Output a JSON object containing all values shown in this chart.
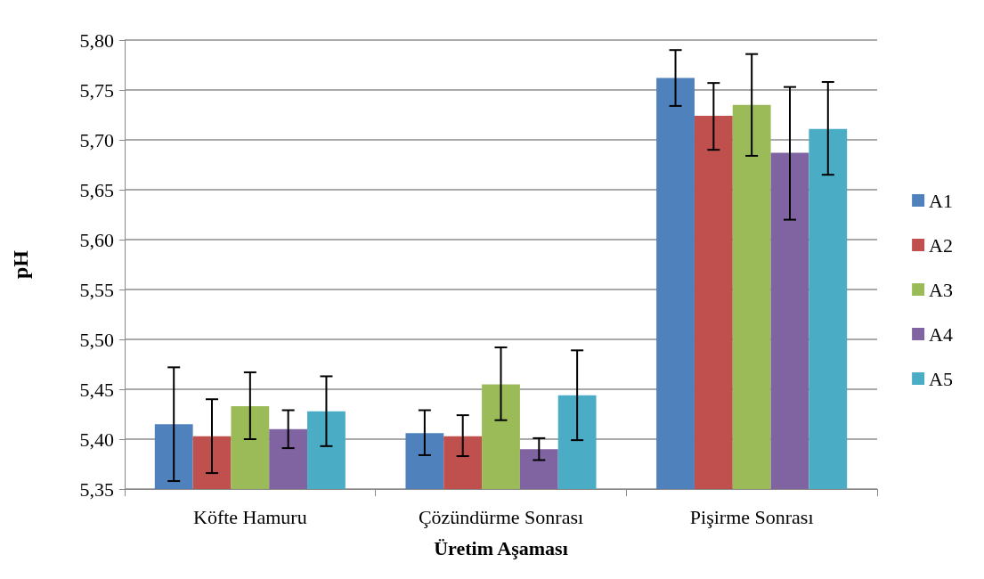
{
  "chart_data": {
    "type": "bar",
    "xlabel": "Üretim Aşaması",
    "ylabel": "pH",
    "categories": [
      "Köfte Hamuru",
      "Çözündürme Sonrası",
      "Pişirme Sonrası"
    ],
    "series": [
      {
        "name": "A1",
        "color": "#4f81bd",
        "values": [
          5.415,
          5.406,
          5.762
        ],
        "errors": [
          [
            5.358,
            5.472
          ],
          [
            5.384,
            5.429
          ],
          [
            5.734,
            5.79
          ]
        ]
      },
      {
        "name": "A2",
        "color": "#c0504d",
        "values": [
          5.403,
          5.403,
          5.724
        ],
        "errors": [
          [
            5.366,
            5.44
          ],
          [
            5.383,
            5.424
          ],
          [
            5.69,
            5.757
          ]
        ]
      },
      {
        "name": "A3",
        "color": "#9bbb59",
        "values": [
          5.433,
          5.455,
          5.735
        ],
        "errors": [
          [
            5.4,
            5.467
          ],
          [
            5.419,
            5.492
          ],
          [
            5.684,
            5.786
          ]
        ]
      },
      {
        "name": "A4",
        "color": "#8064a2",
        "values": [
          5.41,
          5.39,
          5.687
        ],
        "errors": [
          [
            5.391,
            5.429
          ],
          [
            5.379,
            5.401
          ],
          [
            5.62,
            5.753
          ]
        ]
      },
      {
        "name": "A5",
        "color": "#4bacc6",
        "values": [
          5.428,
          5.444,
          5.711
        ],
        "errors": [
          [
            5.393,
            5.463
          ],
          [
            5.399,
            5.489
          ],
          [
            5.665,
            5.758
          ]
        ]
      }
    ],
    "ylim": [
      5.35,
      5.8
    ],
    "yticks": [
      {
        "value": 5.35,
        "label": "5,35"
      },
      {
        "value": 5.4,
        "label": "5,40"
      },
      {
        "value": 5.45,
        "label": "5,45"
      },
      {
        "value": 5.5,
        "label": "5,50"
      },
      {
        "value": 5.55,
        "label": "5,55"
      },
      {
        "value": 5.6,
        "label": "5,60"
      },
      {
        "value": 5.65,
        "label": "5,65"
      },
      {
        "value": 5.7,
        "label": "5,70"
      },
      {
        "value": 5.75,
        "label": "5,75"
      },
      {
        "value": 5.8,
        "label": "5,80"
      }
    ],
    "grid": "y",
    "legend": "right"
  }
}
